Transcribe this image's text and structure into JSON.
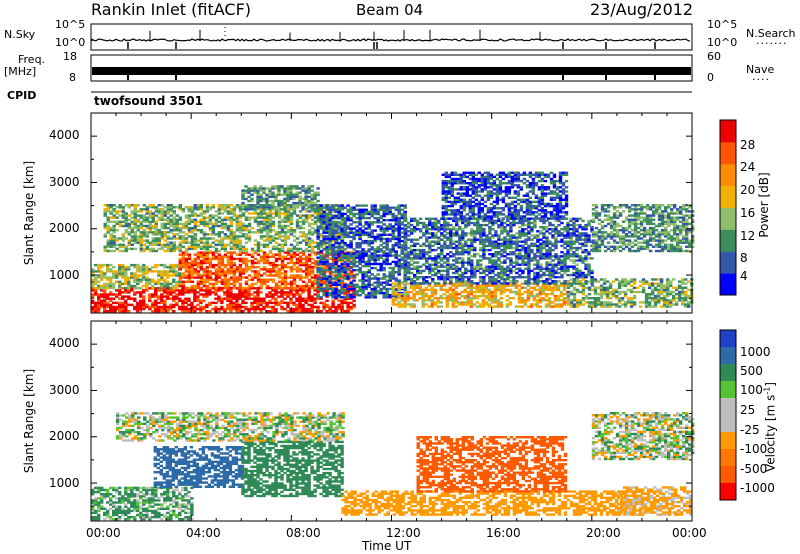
{
  "header": {
    "station": "Rankin Inlet (fitACF)",
    "beam": "Beam 04",
    "date": "23/Aug/2012"
  },
  "left_labels": {
    "nsky": "N.Sky",
    "freq": "Freq.",
    "freq_unit": "[MHz]",
    "cpid": "CPID"
  },
  "right_labels": {
    "nsearch": "N.Search",
    "nave": "Nave"
  },
  "cpid_text": "twofsound 3501",
  "colors": {
    "power": [
      "#0000ff",
      "#3355aa",
      "#3d8c5e",
      "#8fbd6a",
      "#f2b000",
      "#ff8c00",
      "#ff5500",
      "#ee0000"
    ],
    "velocity": [
      "#ff0000",
      "#ff5a00",
      "#ff9a00",
      "#ff7700",
      "#bebebe",
      "#bebebe",
      "#55c434",
      "#2f8a55",
      "#2d6aa8",
      "#2040c8"
    ]
  },
  "chart_data": [
    {
      "type": "line",
      "title": "N.Sky / N.Search",
      "ylabel": "N.Sky",
      "y2label": "N.Search",
      "yticks": [
        "10^5",
        "10^0"
      ],
      "y2ticks": [
        "10^5",
        "10^0"
      ],
      "scale": "log",
      "note": "noise trace near 10^1 with sparse spikes"
    },
    {
      "type": "line",
      "title": "Freq. / Nave",
      "ylabel": "Freq. [MHz]",
      "yticks": [
        "18",
        "8"
      ],
      "ylim": [
        8,
        18
      ],
      "y2label": "Nave",
      "y2ticks": [
        "60",
        "0"
      ],
      "y2lim": [
        0,
        60
      ],
      "note": "frequency ~10-12 MHz continuous, alternating (two-frequency sounding)"
    },
    {
      "type": "heatmap",
      "title": "Power",
      "xlabel": "Time UT",
      "ylabel": "Slant Range [km]",
      "x_ticks": [
        "00:00",
        "04:00",
        "08:00",
        "12:00",
        "16:00",
        "20:00",
        "00:00"
      ],
      "xlim_hours": [
        0,
        24
      ],
      "y_ticks": [
        1000,
        2000,
        3000,
        4000
      ],
      "ylim": [
        180,
        4500
      ],
      "colorbar_label": "Power [dB]",
      "colorbar_ticks": [
        4,
        8,
        12,
        16,
        20,
        24,
        28
      ],
      "colorbar_range": [
        0,
        30
      ],
      "regions": [
        {
          "t": [
            0,
            10.5
          ],
          "r": [
            200,
            700
          ],
          "value": 28
        },
        {
          "t": [
            0,
            3.5
          ],
          "r": [
            700,
            1200
          ],
          "value": 14
        },
        {
          "t": [
            3.5,
            10.5
          ],
          "r": [
            700,
            1500
          ],
          "value": 24
        },
        {
          "t": [
            0.5,
            10
          ],
          "r": [
            1500,
            2500
          ],
          "value": 12
        },
        {
          "t": [
            6,
            9
          ],
          "r": [
            2400,
            2900
          ],
          "value": 10
        },
        {
          "t": [
            9,
            12.5
          ],
          "r": [
            500,
            2500
          ],
          "value": 6
        },
        {
          "t": [
            12,
            19
          ],
          "r": [
            300,
            800
          ],
          "value": 18
        },
        {
          "t": [
            12.5,
            20
          ],
          "r": [
            800,
            2200
          ],
          "value": 7
        },
        {
          "t": [
            14,
            19
          ],
          "r": [
            2200,
            3200
          ],
          "value": 5
        },
        {
          "t": [
            19,
            24
          ],
          "r": [
            300,
            900
          ],
          "value": 12
        },
        {
          "t": [
            20,
            24
          ],
          "r": [
            1500,
            2500
          ],
          "value": 10
        }
      ]
    },
    {
      "type": "heatmap",
      "title": "Velocity",
      "xlabel": "Time UT",
      "ylabel": "Slant Range [km]",
      "x_ticks": [
        "00:00",
        "04:00",
        "08:00",
        "12:00",
        "16:00",
        "20:00",
        "00:00"
      ],
      "xlim_hours": [
        0,
        24
      ],
      "y_ticks": [
        1000,
        2000,
        3000,
        4000
      ],
      "ylim": [
        180,
        4500
      ],
      "colorbar_label": "Velocity [m s^-1]",
      "colorbar_ticks": [
        1000,
        500,
        100,
        25,
        -25,
        -100,
        -500,
        -1000
      ],
      "regions": [
        {
          "t": [
            0,
            4
          ],
          "r": [
            200,
            900
          ],
          "value": 150
        },
        {
          "t": [
            2.5,
            6
          ],
          "r": [
            900,
            1800
          ],
          "value": 700
        },
        {
          "t": [
            6,
            10
          ],
          "r": [
            700,
            1900
          ],
          "value": 300
        },
        {
          "t": [
            1,
            10
          ],
          "r": [
            1900,
            2500
          ],
          "value": 0
        },
        {
          "t": [
            10,
            22
          ],
          "r": [
            300,
            800
          ],
          "value": -300
        },
        {
          "t": [
            13,
            19
          ],
          "r": [
            800,
            2000
          ],
          "value": -700
        },
        {
          "t": [
            20,
            24
          ],
          "r": [
            1500,
            2500
          ],
          "value": 0
        },
        {
          "t": [
            21,
            24
          ],
          "r": [
            300,
            900
          ],
          "value": -200
        }
      ]
    }
  ]
}
